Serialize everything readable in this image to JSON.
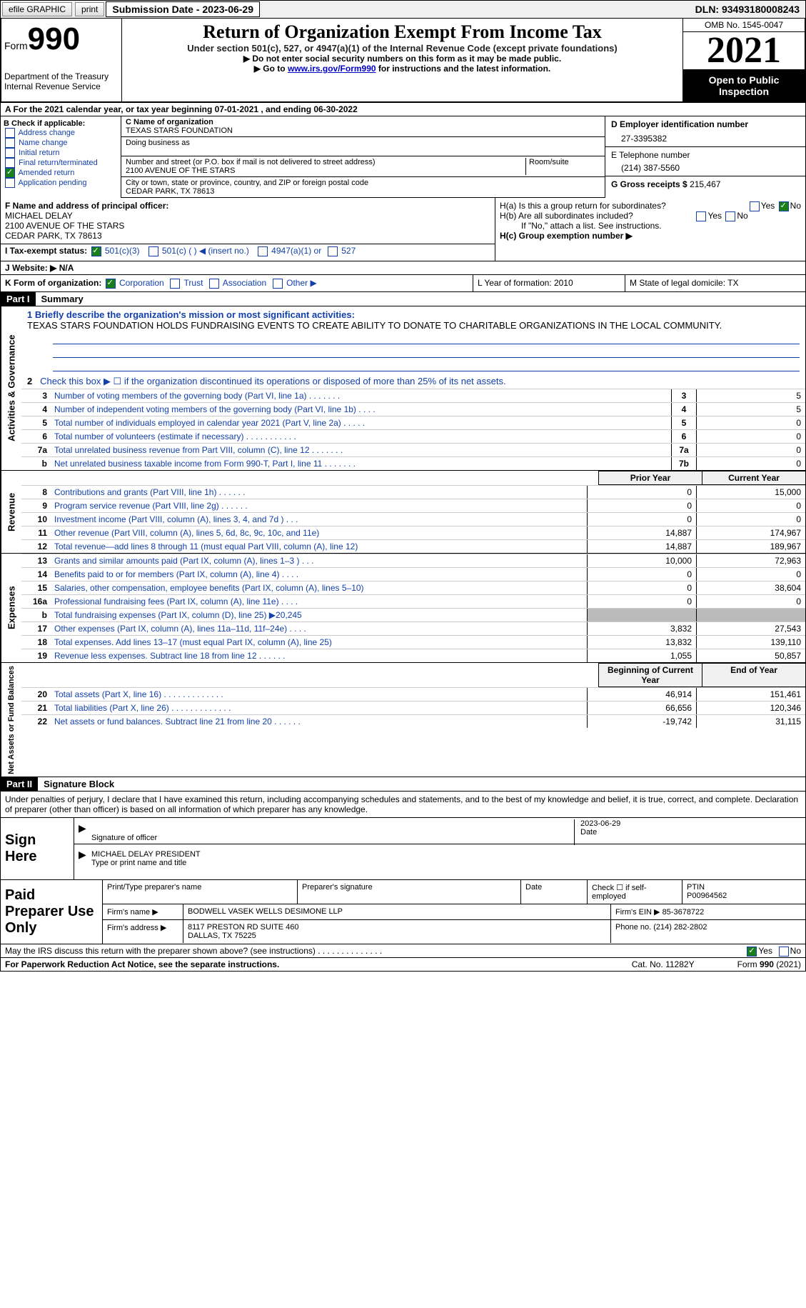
{
  "topbar": {
    "efile": "efile GRAPHIC",
    "print": "print",
    "submission": "Submission Date - 2023-06-29",
    "dln": "DLN: 93493180008243"
  },
  "header": {
    "form_label": "Form",
    "form_number": "990",
    "title": "Return of Organization Exempt From Income Tax",
    "subtitle": "Under section 501(c), 527, or 4947(a)(1) of the Internal Revenue Code (except private foundations)",
    "note1": "▶ Do not enter social security numbers on this form as it may be made public.",
    "note2_pre": "▶ Go to ",
    "note2_link": "www.irs.gov/Form990",
    "note2_post": " for instructions and the latest information.",
    "dept": "Department of the Treasury",
    "irs": "Internal Revenue Service",
    "omb": "OMB No. 1545-0047",
    "year": "2021",
    "inspect": "Open to Public Inspection"
  },
  "rowA": "A For the 2021 calendar year, or tax year beginning 07-01-2021    , and ending 06-30-2022",
  "sectionB": {
    "label": "B Check if applicable:",
    "opts": [
      "Address change",
      "Name change",
      "Initial return",
      "Final return/terminated",
      "Amended return",
      "Application pending"
    ],
    "checked_idx": 4
  },
  "sectionC": {
    "name_label": "C Name of organization",
    "name": "TEXAS STARS FOUNDATION",
    "dba_label": "Doing business as",
    "addr_label": "Number and street (or P.O. box if mail is not delivered to street address)",
    "room_label": "Room/suite",
    "addr": "2100 AVENUE OF THE STARS",
    "city_label": "City or town, state or province, country, and ZIP or foreign postal code",
    "city": "CEDAR PARK, TX   78613"
  },
  "sectionD": {
    "label": "D Employer identification number",
    "value": "27-3395382"
  },
  "sectionE": {
    "label": "E Telephone number",
    "value": "(214) 387-5560"
  },
  "sectionG": {
    "label": "G Gross receipts $",
    "value": "215,467"
  },
  "sectionF": {
    "label": "F Name and address of principal officer:",
    "name": "MICHAEL DELAY",
    "addr1": "2100 AVENUE OF THE STARS",
    "addr2": "CEDAR PARK, TX   78613"
  },
  "sectionH": {
    "a": "H(a)  Is this a group return for subordinates?",
    "b": "H(b)  Are all subordinates included?",
    "b_note": "If \"No,\" attach a list. See instructions.",
    "c": "H(c)  Group exemption number ▶",
    "yes": "Yes",
    "no": "No"
  },
  "rowI": {
    "label": "I   Tax-exempt status:",
    "opts": [
      "501(c)(3)",
      "501(c) (   ) ◀ (insert no.)",
      "4947(a)(1) or",
      "527"
    ]
  },
  "rowJ": "J   Website: ▶   N/A",
  "rowK": {
    "label": "K Form of organization:",
    "opts": [
      "Corporation",
      "Trust",
      "Association",
      "Other ▶"
    ]
  },
  "rowL": "L Year of formation: 2010",
  "rowM": "M State of legal domicile: TX",
  "part1": {
    "header": "Part I",
    "title": "Summary"
  },
  "activities": {
    "vlabel": "Activities & Governance",
    "line1_label": "1   Briefly describe the organization's mission or most significant activities:",
    "line1_text": "TEXAS STARS FOUNDATION HOLDS FUNDRAISING EVENTS TO CREATE ABILITY TO DONATE TO CHARITABLE ORGANIZATIONS IN THE LOCAL COMMUNITY.",
    "line2": "Check this box ▶ ☐  if the organization discontinued its operations or disposed of more than 25% of its net assets.",
    "rows": [
      {
        "n": "3",
        "d": "Number of voting members of the governing body (Part VI, line 1a)   .    .    .    .    .    .    .",
        "b": "3",
        "v": "5"
      },
      {
        "n": "4",
        "d": "Number of independent voting members of the governing body (Part VI, line 1b)    .    .    .    .",
        "b": "4",
        "v": "5"
      },
      {
        "n": "5",
        "d": "Total number of individuals employed in calendar year 2021 (Part V, line 2a)    .    .    .    .    .",
        "b": "5",
        "v": "0"
      },
      {
        "n": "6",
        "d": "Total number of volunteers (estimate if necessary)    .    .    .    .    .    .    .    .    .    .    .",
        "b": "6",
        "v": "0"
      },
      {
        "n": "7a",
        "d": "Total unrelated business revenue from Part VIII, column (C), line 12    .    .    .    .    .    .    .",
        "b": "7a",
        "v": "0"
      },
      {
        "n": "b",
        "d": "Net unrelated business taxable income from Form 990-T, Part I, line 11   .    .    .    .    .    .    .",
        "b": "7b",
        "v": "0"
      }
    ]
  },
  "revenue": {
    "vlabel": "Revenue",
    "hdr_prior": "Prior Year",
    "hdr_current": "Current Year",
    "rows": [
      {
        "n": "8",
        "d": "Contributions and grants (Part VIII, line 1h)   .    .    .    .    .    .",
        "p": "0",
        "c": "15,000"
      },
      {
        "n": "9",
        "d": "Program service revenue (Part VIII, line 2g)   .    .    .    .    .    .",
        "p": "0",
        "c": "0"
      },
      {
        "n": "10",
        "d": "Investment income (Part VIII, column (A), lines 3, 4, and 7d )   .    .    .",
        "p": "0",
        "c": "0"
      },
      {
        "n": "11",
        "d": "Other revenue (Part VIII, column (A), lines 5, 6d, 8c, 9c, 10c, and 11e)",
        "p": "14,887",
        "c": "174,967"
      },
      {
        "n": "12",
        "d": "Total revenue—add lines 8 through 11 (must equal Part VIII, column (A), line 12)",
        "p": "14,887",
        "c": "189,967"
      }
    ]
  },
  "expenses": {
    "vlabel": "Expenses",
    "rows": [
      {
        "n": "13",
        "d": "Grants and similar amounts paid (Part IX, column (A), lines 1–3 )   .    .    .",
        "p": "10,000",
        "c": "72,963"
      },
      {
        "n": "14",
        "d": "Benefits paid to or for members (Part IX, column (A), line 4)   .    .    .    .",
        "p": "0",
        "c": "0"
      },
      {
        "n": "15",
        "d": "Salaries, other compensation, employee benefits (Part IX, column (A), lines 5–10)",
        "p": "0",
        "c": "38,604"
      },
      {
        "n": "16a",
        "d": "Professional fundraising fees (Part IX, column (A), line 11e)    .    .    .    .",
        "p": "0",
        "c": "0"
      },
      {
        "n": "b",
        "d": "Total fundraising expenses (Part IX, column (D), line 25) ▶20,245",
        "p": "",
        "c": "",
        "gray": true
      },
      {
        "n": "17",
        "d": "Other expenses (Part IX, column (A), lines 11a–11d, 11f–24e)    .    .    .    .",
        "p": "3,832",
        "c": "27,543"
      },
      {
        "n": "18",
        "d": "Total expenses. Add lines 13–17 (must equal Part IX, column (A), line 25)",
        "p": "13,832",
        "c": "139,110"
      },
      {
        "n": "19",
        "d": "Revenue less expenses. Subtract line 18 from line 12   .    .    .    .    .    .",
        "p": "1,055",
        "c": "50,857"
      }
    ]
  },
  "netassets": {
    "vlabel": "Net Assets or Fund Balances",
    "hdr_begin": "Beginning of Current Year",
    "hdr_end": "End of Year",
    "rows": [
      {
        "n": "20",
        "d": "Total assets (Part X, line 16)   .    .    .    .    .    .    .    .    .    .    .    .    .",
        "p": "46,914",
        "c": "151,461"
      },
      {
        "n": "21",
        "d": "Total liabilities (Part X, line 26)  .    .    .    .    .    .    .    .    .    .    .    .    .",
        "p": "66,656",
        "c": "120,346"
      },
      {
        "n": "22",
        "d": "Net assets or fund balances. Subtract line 21 from line 20   .    .    .    .    .    .",
        "p": "-19,742",
        "c": "31,115"
      }
    ]
  },
  "part2": {
    "header": "Part II",
    "title": "Signature Block",
    "decl": "Under penalties of perjury, I declare that I have examined this return, including accompanying schedules and statements, and to the best of my knowledge and belief, it is true, correct, and complete. Declaration of preparer (other than officer) is based on all information of which preparer has any knowledge."
  },
  "sign": {
    "label": "Sign Here",
    "sig_label": "Signature of officer",
    "date": "2023-06-29",
    "date_label": "Date",
    "name": "MICHAEL DELAY  PRESIDENT",
    "name_label": "Type or print name and title"
  },
  "preparer": {
    "label": "Paid Preparer Use Only",
    "r1": {
      "c1": "Print/Type preparer's name",
      "c2": "Preparer's signature",
      "c3": "Date",
      "c4_label": "Check ☐ if self-employed",
      "c5_label": "PTIN",
      "c5": "P00964562"
    },
    "r2": {
      "label": "Firm's name      ▶",
      "val": "BODWELL VASEK WELLS DESIMONE LLP",
      "ein_label": "Firm's EIN ▶",
      "ein": "85-3678722"
    },
    "r3": {
      "label": "Firm's address ▶",
      "val1": "8117 PRESTON RD SUITE 460",
      "val2": "DALLAS, TX   75225",
      "phone_label": "Phone no.",
      "phone": "(214) 282-2802"
    }
  },
  "discuss": {
    "text": "May the IRS discuss this return with the preparer shown above? (see instructions)    .    .    .    .    .    .    .    .    .    .    .    .    .    .",
    "yes": "Yes",
    "no": "No"
  },
  "footer": {
    "notice": "For Paperwork Reduction Act Notice, see the separate instructions.",
    "cat": "Cat. No. 11282Y",
    "form": "Form 990 (2021)"
  }
}
